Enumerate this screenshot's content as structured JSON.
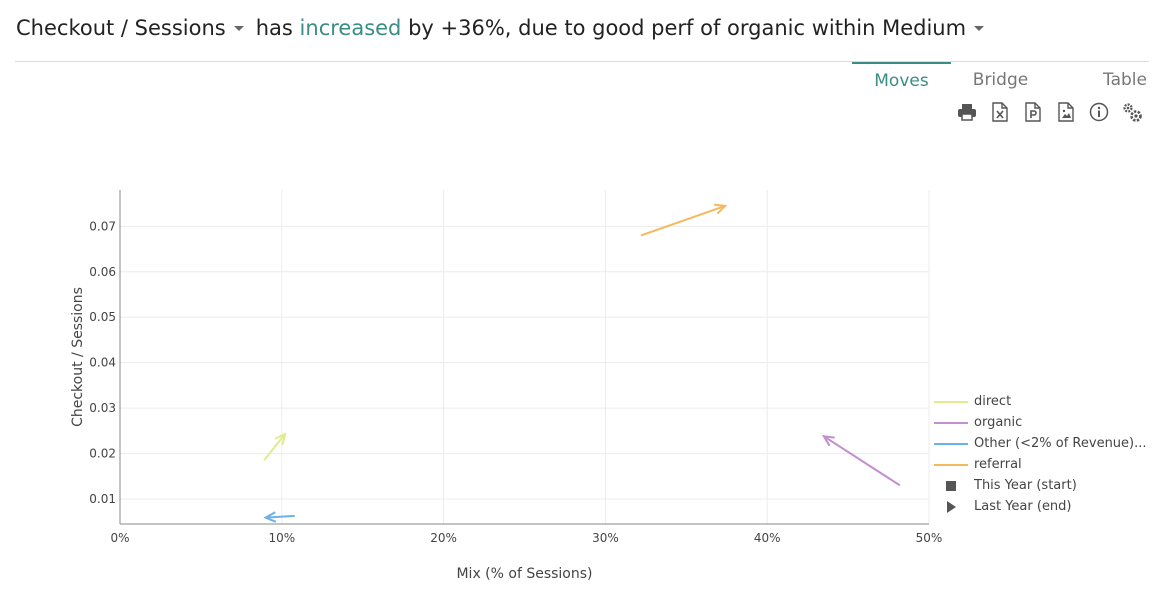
{
  "header": {
    "metric": "Checkout / Sessions",
    "has": "has",
    "direction": "increased",
    "by_text": "by +36%, due to good perf of organic within",
    "dimension": "Medium"
  },
  "tabs": [
    {
      "label": "Moves",
      "active": true
    },
    {
      "label": "Bridge",
      "active": false
    },
    {
      "label": "Table",
      "active": false
    }
  ],
  "toolbar": [
    "print-icon",
    "excel-icon",
    "powerpoint-icon",
    "image-icon",
    "info-icon",
    "settings-icon"
  ],
  "colors": {
    "accent": "#3a8d85",
    "direct": "#e2ec8f",
    "organic": "#c48fcf",
    "other": "#6cb1e8",
    "referral": "#f5b95c"
  },
  "chart_data": {
    "type": "scatter",
    "xlabel": "Mix (% of Sessions)",
    "ylabel": "Checkout / Sessions",
    "xlim": [
      0,
      0.5
    ],
    "ylim": [
      0.0045,
      0.078
    ],
    "x_ticks": [
      "0%",
      "10%",
      "20%",
      "30%",
      "40%",
      "50%"
    ],
    "y_ticks": [
      "0.01",
      "0.02",
      "0.03",
      "0.04",
      "0.05",
      "0.06",
      "0.07"
    ],
    "grid": true,
    "legend_position": "right",
    "series": [
      {
        "name": "direct",
        "color": "#e2ec8f",
        "from": [
          0.089,
          0.0185
        ],
        "to": [
          0.102,
          0.0243
        ]
      },
      {
        "name": "organic",
        "color": "#c48fcf",
        "from": [
          0.482,
          0.013
        ],
        "to": [
          0.435,
          0.0238
        ]
      },
      {
        "name": "Other (<2% of Revenue)...",
        "color": "#6cb1e8",
        "from": [
          0.108,
          0.0063
        ],
        "to": [
          0.09,
          0.0059
        ]
      },
      {
        "name": "referral",
        "color": "#f5b95c",
        "from": [
          0.322,
          0.068
        ],
        "to": [
          0.374,
          0.0745
        ]
      }
    ],
    "markers": [
      {
        "label": "This Year (start)",
        "symbol": "square"
      },
      {
        "label": "Last Year (end)",
        "symbol": "triangle"
      }
    ]
  }
}
